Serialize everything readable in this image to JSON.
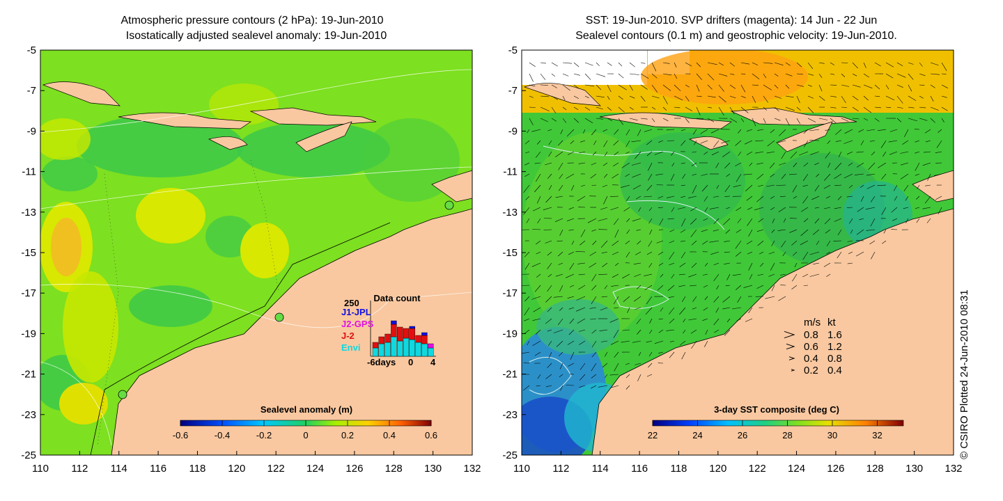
{
  "left_panel": {
    "title_line1": "Atmospheric pressure contours (2 hPa): 19-Jun-2010",
    "title_line2": "Isostatically adjusted sealevel anomaly: 19-Jun-2010",
    "colorbar_title": "Sealevel anomaly (m)",
    "colorbar_ticks": [
      "-0.6",
      "-0.4",
      "-0.2",
      "0",
      "0.2",
      "0.4",
      "0.6"
    ],
    "data_count": {
      "title": "Data count",
      "ymax_label": "250",
      "x_labels": [
        "-6days",
        "0",
        "4"
      ],
      "legend": [
        {
          "label": "J1-JPL",
          "color": "#1010e0"
        },
        {
          "label": "J2-GPS",
          "color": "#e010e0"
        },
        {
          "label": "J-2",
          "color": "#e01010"
        },
        {
          "label": "Envi",
          "color": "#10d8e0"
        }
      ]
    }
  },
  "right_panel": {
    "title_line1": "SST: 19-Jun-2010. SVP drifters (magenta): 14 Jun - 22 Jun",
    "title_line2": "Sealevel contours (0.1 m) and geostrophic velocity: 19-Jun-2010.",
    "colorbar_title": "3-day SST composite (deg C)",
    "colorbar_ticks": [
      "22",
      "24",
      "26",
      "28",
      "30",
      "32"
    ],
    "speed_legend": {
      "header_ms": "m/s",
      "header_kt": "kt",
      "rows": [
        {
          "ms": "0.8",
          "kt": "1.6"
        },
        {
          "ms": "0.6",
          "kt": "1.2"
        },
        {
          "ms": "0.4",
          "kt": "0.8"
        },
        {
          "ms": "0.2",
          "kt": "0.4"
        }
      ]
    }
  },
  "axes": {
    "x_ticks": [
      "110",
      "112",
      "114",
      "116",
      "118",
      "120",
      "122",
      "124",
      "126",
      "128",
      "130",
      "132"
    ],
    "y_ticks": [
      "-5",
      "-7",
      "-9",
      "-11",
      "-13",
      "-15",
      "-17",
      "-19",
      "-21",
      "-23",
      "-25"
    ]
  },
  "credit": "© CSIRO Plotted 24-Jun-2010 08:31",
  "colors": {
    "land": "#f9c8a0",
    "sla_base": "#7de020",
    "sst_base": "#40c838"
  }
}
